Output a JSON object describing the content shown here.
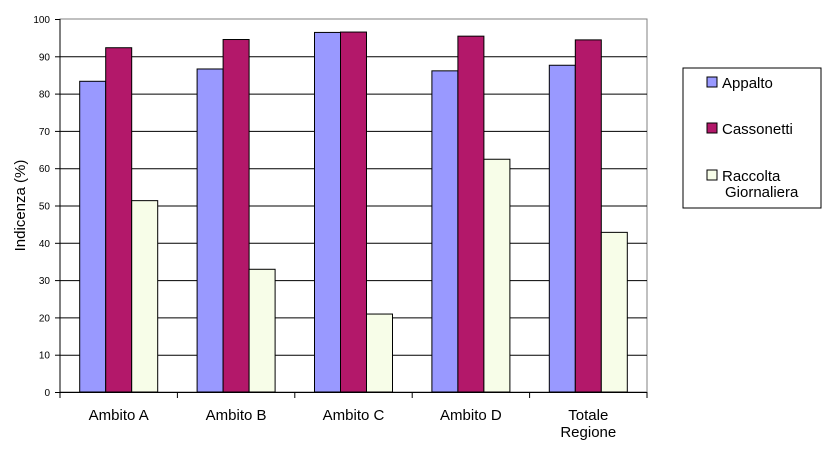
{
  "chart_data": {
    "type": "bar",
    "title": "",
    "xlabel": "",
    "ylabel": "Indicenza (%)",
    "ylim": [
      0,
      100
    ],
    "yticks": [
      0,
      10,
      20,
      30,
      40,
      50,
      60,
      70,
      80,
      90,
      100
    ],
    "grid": true,
    "legend_position": "right",
    "categories": [
      "Ambito A",
      "Ambito B",
      "Ambito C",
      "Ambito D",
      "Totale Regione"
    ],
    "category_lines": [
      [
        "Ambito A"
      ],
      [
        "Ambito B"
      ],
      [
        "Ambito C"
      ],
      [
        "Ambito D"
      ],
      [
        "Totale",
        "Regione"
      ]
    ],
    "series": [
      {
        "name": "Appalto",
        "legend_lines": [
          "Appalto"
        ],
        "color": "#9999ff",
        "values": [
          83.3,
          86.6,
          96.4,
          86.1,
          87.6
        ]
      },
      {
        "name": "Cassonetti",
        "legend_lines": [
          "Cassonetti"
        ],
        "color": "#b3186a",
        "values": [
          92.3,
          94.5,
          96.5,
          95.4,
          94.4
        ]
      },
      {
        "name": "Raccolta Giornaliera",
        "legend_lines": [
          "Raccolta",
          "Giornaliera"
        ],
        "color": "#f7fde8",
        "values": [
          51.3,
          32.9,
          20.9,
          62.4,
          42.8
        ]
      }
    ]
  }
}
